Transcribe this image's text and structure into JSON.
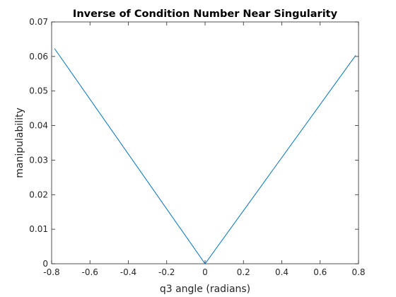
{
  "chart_data": {
    "type": "line",
    "title": "Inverse of Condition Number Near Singularity",
    "xlabel": "q3 angle (radians)",
    "ylabel": "manipulability",
    "xlim": [
      -0.8,
      0.8
    ],
    "ylim": [
      0,
      0.07
    ],
    "xticks": [
      -0.8,
      -0.6,
      -0.4,
      -0.2,
      0,
      0.2,
      0.4,
      0.6,
      0.8
    ],
    "xtick_labels": [
      "-0.8",
      "-0.6",
      "-0.4",
      "-0.2",
      "0",
      "0.2",
      "0.4",
      "0.6",
      "0.8"
    ],
    "yticks": [
      0,
      0.01,
      0.02,
      0.03,
      0.04,
      0.05,
      0.06,
      0.07
    ],
    "ytick_labels": [
      "0",
      "0.01",
      "0.02",
      "0.03",
      "0.04",
      "0.05",
      "0.06",
      "0.07"
    ],
    "grid": false,
    "box": true,
    "series": [
      {
        "color": "#0072BD",
        "x": [
          -0.785,
          0,
          0.785
        ],
        "y": [
          0.0623,
          0,
          0.0603
        ]
      }
    ]
  }
}
